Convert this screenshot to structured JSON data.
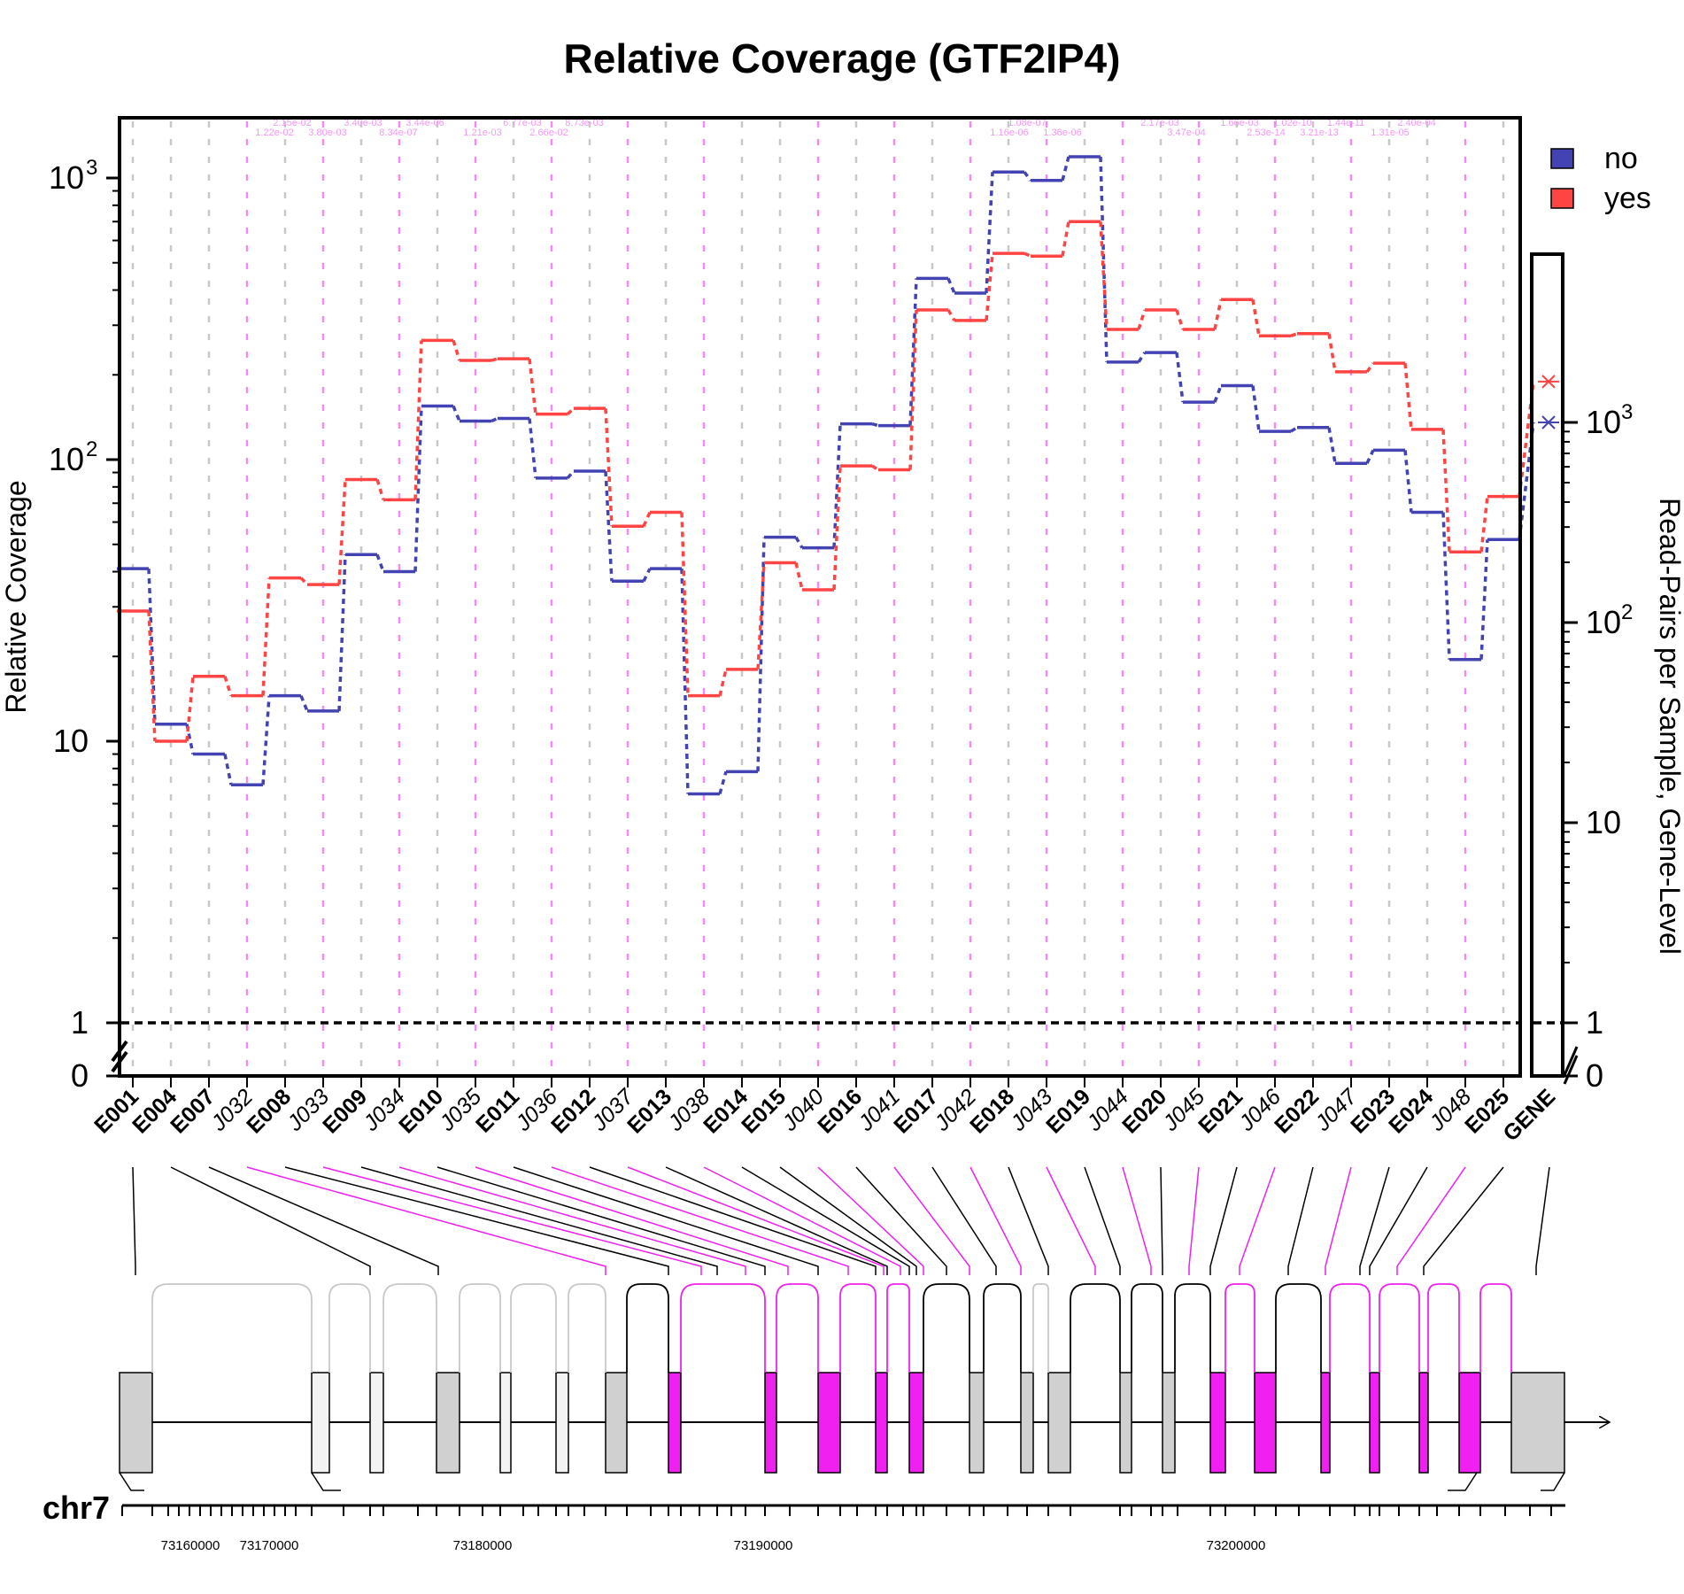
{
  "chart_data": {
    "type": "line",
    "title": "Relative Coverage (GTF2IP4)",
    "ylabel": "Relative Coverage",
    "ylabel_right": "Read-Pairs per Sample, Gene-Level",
    "y_scale": "log",
    "y_ticks": [
      {
        "base": "0",
        "sup": ""
      },
      {
        "base": "1",
        "sup": ""
      },
      {
        "base": "10",
        "sup": ""
      },
      {
        "base": "10",
        "sup": "2"
      },
      {
        "base": "10",
        "sup": "3"
      }
    ],
    "right_y_ticks": [
      {
        "base": "0",
        "sup": ""
      },
      {
        "base": "1",
        "sup": ""
      },
      {
        "base": "10",
        "sup": ""
      },
      {
        "base": "10",
        "sup": "2"
      },
      {
        "base": "10",
        "sup": "3"
      }
    ],
    "categories": [
      "E001",
      "E004",
      "E007",
      "J032",
      "E008",
      "J033",
      "E009",
      "J034",
      "E010",
      "J035",
      "E011",
      "J036",
      "E012",
      "J037",
      "E013",
      "J038",
      "E014",
      "E015",
      "J040",
      "E016",
      "J041",
      "E017",
      "J042",
      "E018",
      "J043",
      "E019",
      "J044",
      "E020",
      "J045",
      "E021",
      "J046",
      "E022",
      "J047",
      "E023",
      "E024",
      "J048",
      "E025"
    ],
    "category_kinds": [
      "E",
      "E",
      "E",
      "J",
      "E",
      "J",
      "E",
      "J",
      "E",
      "J",
      "E",
      "J",
      "E",
      "J",
      "E",
      "J",
      "E",
      "E",
      "J",
      "E",
      "J",
      "E",
      "J",
      "E",
      "J",
      "E",
      "J",
      "E",
      "J",
      "E",
      "J",
      "E",
      "J",
      "E",
      "E",
      "J",
      "E"
    ],
    "series": [
      {
        "name": "no",
        "color": "#4343b3",
        "values": [
          41,
          11.5,
          9,
          7,
          14.5,
          12.8,
          46,
          40,
          155,
          137,
          140,
          86,
          91,
          37,
          41,
          6.5,
          7.8,
          53,
          48.6,
          134,
          132,
          440,
          390,
          1050,
          980,
          1190,
          222,
          240,
          160,
          183,
          126,
          130,
          97,
          108,
          65,
          19.5,
          52
        ]
      },
      {
        "name": "yes",
        "color": "#ff4444",
        "values": [
          29,
          10,
          17,
          14.5,
          38,
          36,
          85,
          72,
          265,
          225,
          228,
          145,
          152,
          58,
          65,
          14.5,
          18,
          43,
          34.5,
          95,
          92,
          340,
          312,
          540,
          528,
          700,
          290,
          340,
          290,
          370,
          275,
          280,
          205,
          220,
          128,
          47,
          74
        ]
      }
    ],
    "gene_level": [
      {
        "name": "no",
        "value": 1000
      },
      {
        "name": "yes",
        "value": 1600
      }
    ],
    "gene_label": "GENE",
    "legend": {
      "position": "top-right",
      "entries": [
        "no",
        "yes"
      ]
    },
    "grid": true,
    "reference_line": 1,
    "pvalue_labels": [
      "1.22e-02",
      "2.15e-02",
      "3.80e-03",
      "3.40e-03",
      "8.34e-07",
      "3.44e-06",
      "1.21e-03",
      "6.77e-03",
      "2.66e-02",
      "8.73e-03",
      "1.16e-06",
      "1.08e-07",
      "1.36e-06",
      "2.17e-03",
      "3.47e-04",
      "1.66e-03",
      "2.53e-14",
      "1.02e-10",
      "3.21e-13",
      "1.44e-11",
      "1.31e-05",
      "2.40e-04"
    ]
  },
  "genome": {
    "chromosome": "chr7",
    "tick_labels": [
      "73160000",
      "73170000",
      "73180000",
      "73190000",
      "73200000"
    ]
  }
}
